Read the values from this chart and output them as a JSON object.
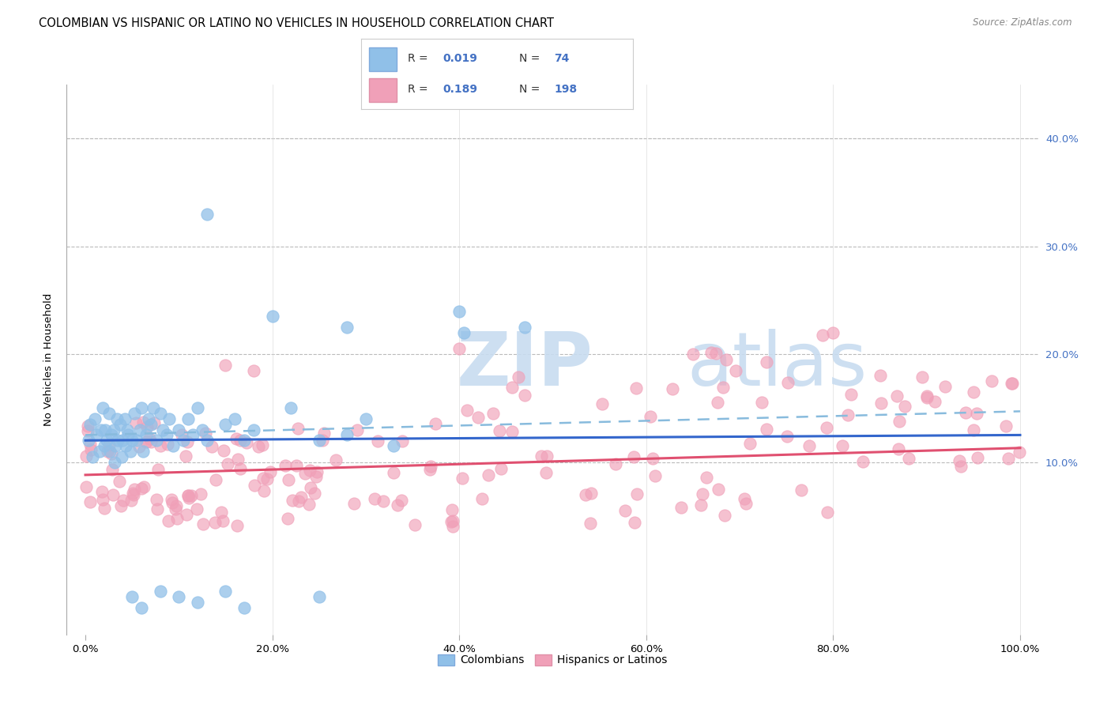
{
  "title": "COLOMBIAN VS HISPANIC OR LATINO NO VEHICLES IN HOUSEHOLD CORRELATION CHART",
  "source": "Source: ZipAtlas.com",
  "ylabel_label": "No Vehicles in Household",
  "color_colombian": "#90C0E8",
  "color_hispanic": "#F0A0B8",
  "color_blue_text": "#4472C4",
  "color_pink_text": "#E05070",
  "trendline_colombian_color": "#3366CC",
  "trendline_hispanic_color": "#E05070",
  "trendline_dashed_color": "#88BBDD",
  "background_color": "#FFFFFF",
  "watermark_zip_color": "#C8DCF0",
  "watermark_atlas_color": "#C8DCF0",
  "right_ytick_values": [
    10,
    20,
    30,
    40
  ],
  "right_ytick_labels": [
    "10.0%",
    "20.0%",
    "30.0%",
    "40.0%"
  ],
  "xtick_values": [
    0,
    20,
    40,
    60,
    80,
    100
  ],
  "xtick_labels": [
    "0.0%",
    "20.0%",
    "40.0%",
    "60.0%",
    "80.0%",
    "100.0%"
  ],
  "xlim": [
    -2,
    102
  ],
  "ylim": [
    -6,
    45
  ],
  "legend_r_n": [
    {
      "R": "0.019",
      "N": "74"
    },
    {
      "R": "0.189",
      "N": "198"
    }
  ],
  "trendline_col_intercept": 12.0,
  "trendline_col_slope": 0.005,
  "trendline_hisp_intercept": 8.8,
  "trendline_hisp_slope": 0.025,
  "trendline_dash_intercept": 12.5,
  "trendline_dash_slope": 0.022
}
